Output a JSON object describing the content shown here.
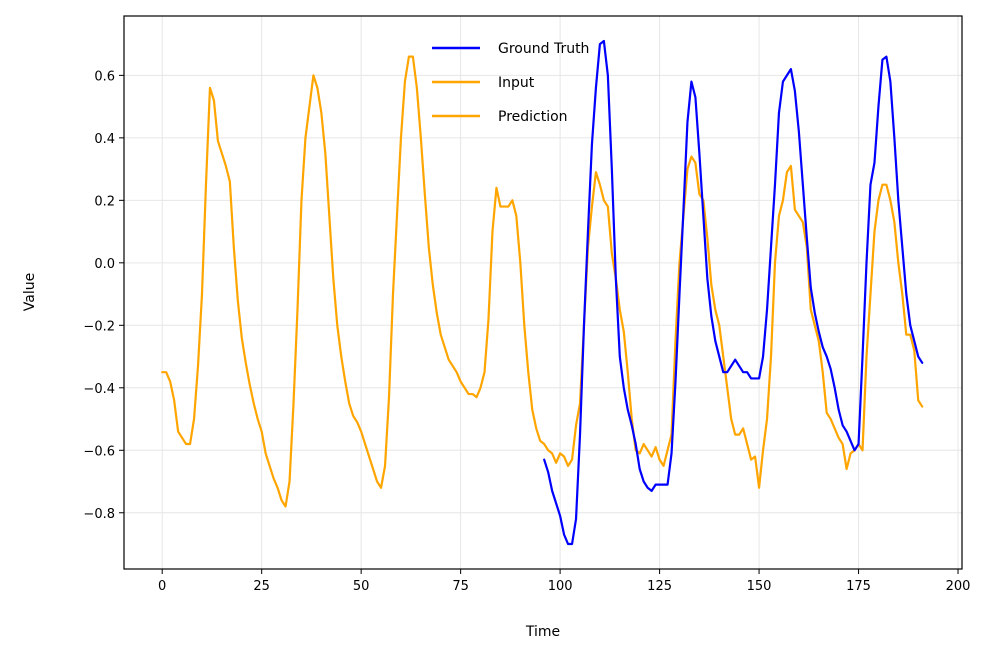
{
  "chart_data": {
    "type": "line",
    "title": "",
    "xlabel": "Time",
    "ylabel": "Value",
    "xlim": [
      -9.6,
      201
    ],
    "ylim": [
      -0.98,
      0.79
    ],
    "x_ticks": [
      0,
      25,
      50,
      75,
      100,
      125,
      150,
      175,
      200
    ],
    "x_tick_labels": [
      "0",
      "25",
      "50",
      "75",
      "100",
      "125",
      "150",
      "175",
      "200"
    ],
    "y_ticks": [
      -0.8,
      -0.6,
      -0.4,
      -0.2,
      0.0,
      0.2,
      0.4,
      0.6
    ],
    "y_tick_labels": [
      "−0.8",
      "−0.6",
      "−0.4",
      "−0.2",
      "0.0",
      "0.2",
      "0.4",
      "0.6"
    ],
    "grid": true,
    "legend_position": "top-center",
    "series": [
      {
        "name": "Ground Truth",
        "color": "#0000ff",
        "points": [
          [
            96,
            -0.63
          ],
          [
            97,
            -0.67
          ],
          [
            98,
            -0.73
          ],
          [
            99,
            -0.77
          ],
          [
            100,
            -0.81
          ],
          [
            101,
            -0.87
          ],
          [
            102,
            -0.9
          ],
          [
            103,
            -0.9
          ],
          [
            104,
            -0.82
          ],
          [
            105,
            -0.55
          ],
          [
            106,
            -0.2
          ],
          [
            107,
            0.1
          ],
          [
            108,
            0.38
          ],
          [
            109,
            0.56
          ],
          [
            110,
            0.7
          ],
          [
            111,
            0.71
          ],
          [
            112,
            0.6
          ],
          [
            113,
            0.3
          ],
          [
            114,
            -0.05
          ],
          [
            115,
            -0.3
          ],
          [
            116,
            -0.4
          ],
          [
            117,
            -0.47
          ],
          [
            118,
            -0.52
          ],
          [
            119,
            -0.58
          ],
          [
            120,
            -0.66
          ],
          [
            121,
            -0.7
          ],
          [
            122,
            -0.72
          ],
          [
            123,
            -0.73
          ],
          [
            124,
            -0.71
          ],
          [
            125,
            -0.71
          ],
          [
            126,
            -0.71
          ],
          [
            127,
            -0.71
          ],
          [
            128,
            -0.61
          ],
          [
            129,
            -0.38
          ],
          [
            130,
            -0.1
          ],
          [
            131,
            0.17
          ],
          [
            132,
            0.45
          ],
          [
            133,
            0.58
          ],
          [
            134,
            0.53
          ],
          [
            135,
            0.35
          ],
          [
            136,
            0.15
          ],
          [
            137,
            -0.05
          ],
          [
            138,
            -0.17
          ],
          [
            139,
            -0.25
          ],
          [
            140,
            -0.3
          ],
          [
            141,
            -0.35
          ],
          [
            142,
            -0.35
          ],
          [
            143,
            -0.33
          ],
          [
            144,
            -0.31
          ],
          [
            145,
            -0.33
          ],
          [
            146,
            -0.35
          ],
          [
            147,
            -0.35
          ],
          [
            148,
            -0.37
          ],
          [
            149,
            -0.37
          ],
          [
            150,
            -0.37
          ],
          [
            151,
            -0.3
          ],
          [
            152,
            -0.15
          ],
          [
            153,
            0.05
          ],
          [
            154,
            0.25
          ],
          [
            155,
            0.48
          ],
          [
            156,
            0.58
          ],
          [
            157,
            0.6
          ],
          [
            158,
            0.62
          ],
          [
            159,
            0.55
          ],
          [
            160,
            0.42
          ],
          [
            161,
            0.25
          ],
          [
            162,
            0.08
          ],
          [
            163,
            -0.08
          ],
          [
            164,
            -0.16
          ],
          [
            165,
            -0.22
          ],
          [
            166,
            -0.27
          ],
          [
            167,
            -0.3
          ],
          [
            168,
            -0.34
          ],
          [
            169,
            -0.4
          ],
          [
            170,
            -0.47
          ],
          [
            171,
            -0.52
          ],
          [
            172,
            -0.54
          ],
          [
            173,
            -0.57
          ],
          [
            174,
            -0.6
          ],
          [
            175,
            -0.58
          ],
          [
            176,
            -0.3
          ],
          [
            177,
            0.0
          ],
          [
            178,
            0.25
          ],
          [
            179,
            0.32
          ],
          [
            180,
            0.5
          ],
          [
            181,
            0.65
          ],
          [
            182,
            0.66
          ],
          [
            183,
            0.58
          ],
          [
            184,
            0.4
          ],
          [
            185,
            0.2
          ],
          [
            186,
            0.05
          ],
          [
            187,
            -0.1
          ],
          [
            188,
            -0.2
          ],
          [
            189,
            -0.25
          ],
          [
            190,
            -0.3
          ],
          [
            191,
            -0.32
          ]
        ]
      },
      {
        "name": "Input",
        "color": "#ffa500",
        "points": [
          [
            0,
            -0.35
          ],
          [
            1,
            -0.35
          ],
          [
            2,
            -0.38
          ],
          [
            3,
            -0.44
          ],
          [
            4,
            -0.54
          ],
          [
            5,
            -0.56
          ],
          [
            6,
            -0.58
          ],
          [
            7,
            -0.58
          ],
          [
            8,
            -0.5
          ],
          [
            9,
            -0.33
          ],
          [
            10,
            -0.1
          ],
          [
            11,
            0.25
          ],
          [
            12,
            0.56
          ],
          [
            13,
            0.52
          ],
          [
            14,
            0.39
          ],
          [
            15,
            0.35
          ],
          [
            16,
            0.31
          ],
          [
            17,
            0.26
          ],
          [
            18,
            0.05
          ],
          [
            19,
            -0.12
          ],
          [
            20,
            -0.24
          ],
          [
            21,
            -0.32
          ],
          [
            22,
            -0.39
          ],
          [
            23,
            -0.45
          ],
          [
            24,
            -0.5
          ],
          [
            25,
            -0.54
          ],
          [
            26,
            -0.61
          ],
          [
            27,
            -0.65
          ],
          [
            28,
            -0.69
          ],
          [
            29,
            -0.72
          ],
          [
            30,
            -0.76
          ],
          [
            31,
            -0.78
          ],
          [
            32,
            -0.7
          ],
          [
            33,
            -0.45
          ],
          [
            34,
            -0.15
          ],
          [
            35,
            0.2
          ],
          [
            36,
            0.4
          ],
          [
            37,
            0.5
          ],
          [
            38,
            0.6
          ],
          [
            39,
            0.56
          ],
          [
            40,
            0.48
          ],
          [
            41,
            0.35
          ],
          [
            42,
            0.15
          ],
          [
            43,
            -0.05
          ],
          [
            44,
            -0.2
          ],
          [
            45,
            -0.3
          ],
          [
            46,
            -0.38
          ],
          [
            47,
            -0.45
          ],
          [
            48,
            -0.49
          ],
          [
            49,
            -0.51
          ],
          [
            50,
            -0.54
          ],
          [
            51,
            -0.58
          ],
          [
            52,
            -0.62
          ],
          [
            53,
            -0.66
          ],
          [
            54,
            -0.7
          ],
          [
            55,
            -0.72
          ],
          [
            56,
            -0.65
          ],
          [
            57,
            -0.43
          ],
          [
            58,
            -0.1
          ],
          [
            59,
            0.15
          ],
          [
            60,
            0.4
          ],
          [
            61,
            0.58
          ],
          [
            62,
            0.66
          ],
          [
            63,
            0.66
          ],
          [
            64,
            0.56
          ],
          [
            65,
            0.4
          ],
          [
            66,
            0.22
          ],
          [
            67,
            0.05
          ],
          [
            68,
            -0.07
          ],
          [
            69,
            -0.16
          ],
          [
            70,
            -0.23
          ],
          [
            71,
            -0.27
          ],
          [
            72,
            -0.31
          ],
          [
            73,
            -0.33
          ],
          [
            74,
            -0.35
          ],
          [
            75,
            -0.38
          ],
          [
            76,
            -0.4
          ],
          [
            77,
            -0.42
          ],
          [
            78,
            -0.42
          ],
          [
            79,
            -0.43
          ],
          [
            80,
            -0.4
          ],
          [
            81,
            -0.35
          ],
          [
            82,
            -0.18
          ],
          [
            83,
            0.1
          ],
          [
            84,
            0.24
          ],
          [
            85,
            0.18
          ],
          [
            86,
            0.18
          ],
          [
            87,
            0.18
          ],
          [
            88,
            0.2
          ],
          [
            89,
            0.15
          ],
          [
            90,
            0.0
          ],
          [
            91,
            -0.2
          ],
          [
            92,
            -0.35
          ],
          [
            93,
            -0.47
          ],
          [
            94,
            -0.53
          ],
          [
            95,
            -0.57
          ],
          [
            96,
            -0.58
          ]
        ]
      },
      {
        "name": "Prediction",
        "color": "#ffa500",
        "points": [
          [
            96,
            -0.58
          ],
          [
            97,
            -0.6
          ],
          [
            98,
            -0.61
          ],
          [
            99,
            -0.64
          ],
          [
            100,
            -0.61
          ],
          [
            101,
            -0.62
          ],
          [
            102,
            -0.65
          ],
          [
            103,
            -0.63
          ],
          [
            104,
            -0.52
          ],
          [
            105,
            -0.45
          ],
          [
            106,
            -0.2
          ],
          [
            107,
            0.05
          ],
          [
            108,
            0.18
          ],
          [
            109,
            0.29
          ],
          [
            110,
            0.25
          ],
          [
            111,
            0.2
          ],
          [
            112,
            0.18
          ],
          [
            113,
            0.03
          ],
          [
            114,
            -0.05
          ],
          [
            115,
            -0.15
          ],
          [
            116,
            -0.22
          ],
          [
            117,
            -0.35
          ],
          [
            118,
            -0.5
          ],
          [
            119,
            -0.6
          ],
          [
            120,
            -0.61
          ],
          [
            121,
            -0.58
          ],
          [
            122,
            -0.6
          ],
          [
            123,
            -0.62
          ],
          [
            124,
            -0.59
          ],
          [
            125,
            -0.63
          ],
          [
            126,
            -0.65
          ],
          [
            127,
            -0.6
          ],
          [
            128,
            -0.55
          ],
          [
            129,
            -0.25
          ],
          [
            130,
            0.0
          ],
          [
            131,
            0.15
          ],
          [
            132,
            0.3
          ],
          [
            133,
            0.34
          ],
          [
            134,
            0.32
          ],
          [
            135,
            0.22
          ],
          [
            136,
            0.2
          ],
          [
            137,
            0.08
          ],
          [
            138,
            -0.07
          ],
          [
            139,
            -0.15
          ],
          [
            140,
            -0.2
          ],
          [
            141,
            -0.3
          ],
          [
            142,
            -0.4
          ],
          [
            143,
            -0.5
          ],
          [
            144,
            -0.55
          ],
          [
            145,
            -0.55
          ],
          [
            146,
            -0.53
          ],
          [
            147,
            -0.58
          ],
          [
            148,
            -0.63
          ],
          [
            149,
            -0.62
          ],
          [
            150,
            -0.72
          ],
          [
            151,
            -0.6
          ],
          [
            152,
            -0.5
          ],
          [
            153,
            -0.3
          ],
          [
            154,
            0.0
          ],
          [
            155,
            0.15
          ],
          [
            156,
            0.2
          ],
          [
            157,
            0.29
          ],
          [
            158,
            0.31
          ],
          [
            159,
            0.17
          ],
          [
            160,
            0.15
          ],
          [
            161,
            0.13
          ],
          [
            162,
            0.05
          ],
          [
            163,
            -0.15
          ],
          [
            164,
            -0.2
          ],
          [
            165,
            -0.25
          ],
          [
            166,
            -0.35
          ],
          [
            167,
            -0.48
          ],
          [
            168,
            -0.5
          ],
          [
            169,
            -0.53
          ],
          [
            170,
            -0.56
          ],
          [
            171,
            -0.58
          ],
          [
            172,
            -0.66
          ],
          [
            173,
            -0.61
          ],
          [
            174,
            -0.6
          ],
          [
            175,
            -0.58
          ],
          [
            176,
            -0.6
          ],
          [
            177,
            -0.3
          ],
          [
            178,
            -0.1
          ],
          [
            179,
            0.1
          ],
          [
            180,
            0.2
          ],
          [
            181,
            0.25
          ],
          [
            182,
            0.25
          ],
          [
            183,
            0.2
          ],
          [
            184,
            0.13
          ],
          [
            185,
            0.0
          ],
          [
            186,
            -0.1
          ],
          [
            187,
            -0.23
          ],
          [
            188,
            -0.23
          ],
          [
            189,
            -0.28
          ],
          [
            190,
            -0.44
          ],
          [
            191,
            -0.46
          ]
        ]
      }
    ]
  }
}
